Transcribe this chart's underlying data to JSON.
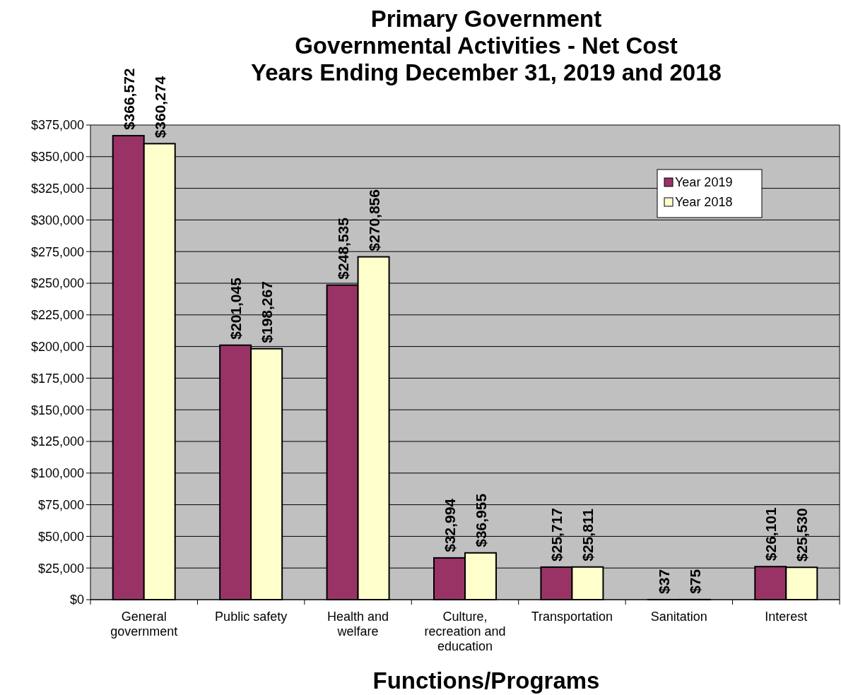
{
  "chart_data": {
    "type": "bar",
    "title": "Primary Government\nGovernmental Activities - Net Cost\nYears Ending December 31, 2019 and 2018",
    "xlabel": "Functions/Programs",
    "categories": [
      "General government",
      "Public safety",
      "Health and welfare",
      "Culture, recreation and education",
      "Transportation",
      "Sanitation",
      "Interest"
    ],
    "series": [
      {
        "name": "Year 2019",
        "color": "#993366",
        "values": [
          366572,
          201045,
          248535,
          32994,
          25717,
          37,
          26101
        ],
        "value_labels": [
          "$366,572",
          "$201,045",
          "$248,535",
          "$32,994",
          "$25,717",
          "$37",
          "$26,101"
        ]
      },
      {
        "name": "Year 2018",
        "color": "#ffffcc",
        "values": [
          360274,
          198267,
          270856,
          36955,
          25811,
          75,
          25530
        ],
        "value_labels": [
          "$360,274",
          "$198,267",
          "$270,856",
          "$36,955",
          "$25,811",
          "$75",
          "$25,530"
        ]
      }
    ],
    "ylim": [
      0,
      375000
    ],
    "yticks": [
      {
        "value": 0,
        "label": "$0"
      },
      {
        "value": 25000,
        "label": "$25,000"
      },
      {
        "value": 50000,
        "label": "$50,000"
      },
      {
        "value": 75000,
        "label": "$75,000"
      },
      {
        "value": 100000,
        "label": "$100,000"
      },
      {
        "value": 125000,
        "label": "$125,000"
      },
      {
        "value": 150000,
        "label": "$150,000"
      },
      {
        "value": 175000,
        "label": "$175,000"
      },
      {
        "value": 200000,
        "label": "$200,000"
      },
      {
        "value": 225000,
        "label": "$225,000"
      },
      {
        "value": 250000,
        "label": "$250,000"
      },
      {
        "value": 275000,
        "label": "$275,000"
      },
      {
        "value": 300000,
        "label": "$300,000"
      },
      {
        "value": 325000,
        "label": "$325,000"
      },
      {
        "value": 350000,
        "label": "$350,000"
      },
      {
        "value": 375000,
        "label": "$375,000"
      }
    ],
    "grid": "y",
    "legend": "top right"
  }
}
